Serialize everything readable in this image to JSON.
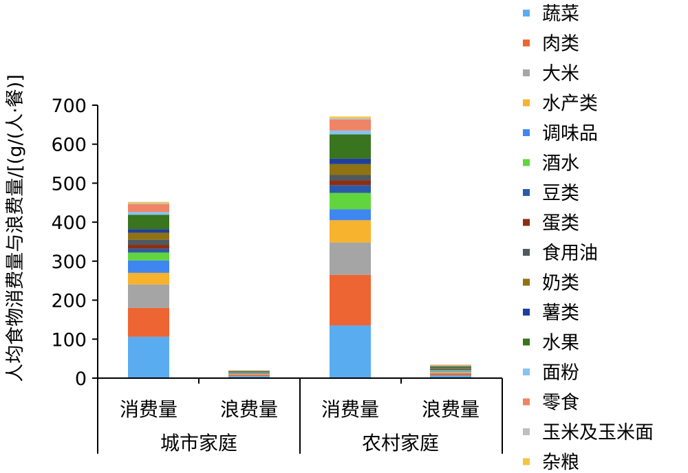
{
  "chart_data": {
    "type": "bar",
    "stacked": true,
    "ylabel": "人均食物消费量与浪费量/[(g/(人·餐)]",
    "xlabel": "",
    "ylim": [
      0,
      700
    ],
    "yticks": [
      0,
      100,
      200,
      300,
      400,
      500,
      600,
      700
    ],
    "grid": false,
    "legend_position": "right",
    "categories": [
      "消费量",
      "浪费量",
      "消费量",
      "浪费量"
    ],
    "groups": [
      {
        "label": "城市家庭",
        "span": [
          0,
          1
        ]
      },
      {
        "label": "农村家庭",
        "span": [
          2,
          3
        ]
      }
    ],
    "series": [
      {
        "name": "蔬菜",
        "color": "#5aacf0",
        "values": [
          106,
          5,
          135,
          7
        ]
      },
      {
        "name": "肉类",
        "color": "#ed6532",
        "values": [
          74,
          3,
          130,
          5
        ]
      },
      {
        "name": "大米",
        "color": "#a5a5a5",
        "values": [
          60,
          1.5,
          83,
          2.5
        ]
      },
      {
        "name": "水产类",
        "color": "#f7b22e",
        "values": [
          30,
          1,
          57,
          2
        ]
      },
      {
        "name": "调味品",
        "color": "#3f86f0",
        "values": [
          32,
          1.5,
          28,
          2.5
        ]
      },
      {
        "name": "酒水",
        "color": "#61d53d",
        "values": [
          20,
          1,
          42,
          2
        ]
      },
      {
        "name": "豆类",
        "color": "#2b5ba8",
        "values": [
          10,
          0.5,
          20,
          1
        ]
      },
      {
        "name": "蛋类",
        "color": "#8e2e10",
        "values": [
          10,
          0.5,
          12,
          1
        ]
      },
      {
        "name": "食用油",
        "color": "#4f5961",
        "values": [
          13,
          0.5,
          14,
          1
        ]
      },
      {
        "name": "奶类",
        "color": "#8f7212",
        "values": [
          18,
          1,
          28,
          2
        ]
      },
      {
        "name": "薯类",
        "color": "#1f3f9c",
        "values": [
          9,
          0.5,
          14,
          1
        ]
      },
      {
        "name": "水果",
        "color": "#39741e",
        "values": [
          37,
          2,
          62,
          3
        ]
      },
      {
        "name": "面粉",
        "color": "#85c4f0",
        "values": [
          7,
          0.5,
          10,
          1
        ]
      },
      {
        "name": "零食",
        "color": "#ef8466",
        "values": [
          20,
          1,
          28,
          2
        ]
      },
      {
        "name": "玉米及玉米面",
        "color": "#bfbfbf",
        "values": [
          3,
          0.5,
          4,
          1
        ]
      },
      {
        "name": "杂粮",
        "color": "#f5c542",
        "values": [
          3,
          0.5,
          4,
          1
        ]
      }
    ]
  }
}
